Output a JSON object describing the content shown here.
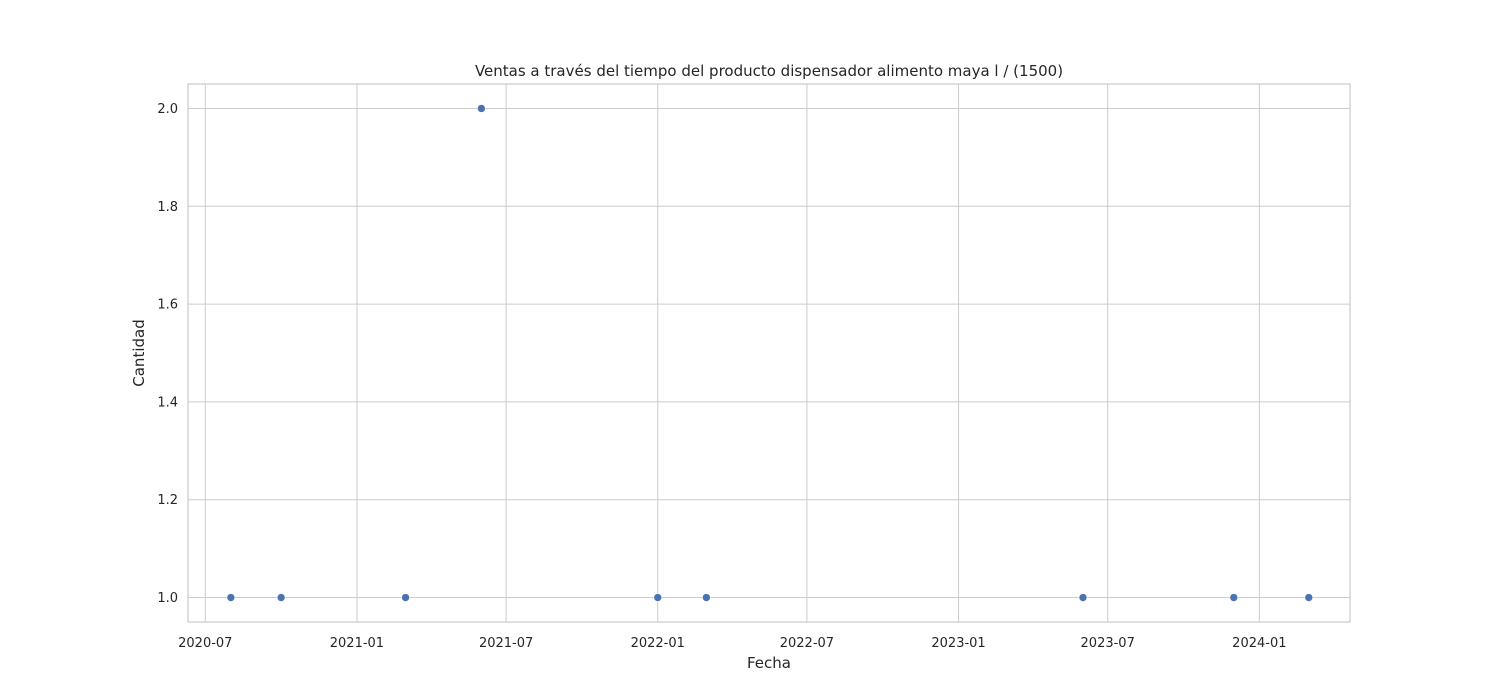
{
  "chart_data": {
    "type": "scatter",
    "title": "Ventas a través del tiempo del producto dispensador alimento maya l / (1500)",
    "xlabel": "Fecha",
    "ylabel": "Cantidad",
    "x_type": "date",
    "xlim": [
      "2020-06-10",
      "2024-04-20"
    ],
    "ylim": [
      0.95,
      2.05
    ],
    "grid": true,
    "marker_color": "#4c72b0",
    "x_ticks": [
      {
        "value": "2020-07-01",
        "label": "2020-07"
      },
      {
        "value": "2021-01-01",
        "label": "2021-01"
      },
      {
        "value": "2021-07-01",
        "label": "2021-07"
      },
      {
        "value": "2022-01-01",
        "label": "2022-01"
      },
      {
        "value": "2022-07-01",
        "label": "2022-07"
      },
      {
        "value": "2023-01-01",
        "label": "2023-01"
      },
      {
        "value": "2023-07-01",
        "label": "2023-07"
      },
      {
        "value": "2024-01-01",
        "label": "2024-01"
      }
    ],
    "y_ticks": [
      {
        "value": 1.0,
        "label": "1.0"
      },
      {
        "value": 1.2,
        "label": "1.2"
      },
      {
        "value": 1.4,
        "label": "1.4"
      },
      {
        "value": 1.6,
        "label": "1.6"
      },
      {
        "value": 1.8,
        "label": "1.8"
      },
      {
        "value": 2.0,
        "label": "2.0"
      }
    ],
    "points": [
      {
        "x": "2020-08-01",
        "y": 1
      },
      {
        "x": "2020-10-01",
        "y": 1
      },
      {
        "x": "2021-03-01",
        "y": 1
      },
      {
        "x": "2021-06-01",
        "y": 2
      },
      {
        "x": "2022-01-01",
        "y": 1
      },
      {
        "x": "2022-03-01",
        "y": 1
      },
      {
        "x": "2023-06-01",
        "y": 1
      },
      {
        "x": "2023-12-01",
        "y": 1
      },
      {
        "x": "2024-03-01",
        "y": 1
      }
    ]
  }
}
